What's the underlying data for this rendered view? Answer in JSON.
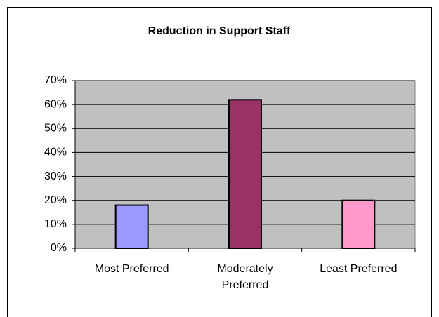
{
  "chart_data": {
    "type": "bar",
    "title": "Reduction in Support Staff",
    "categories": [
      "Most Preferred",
      "Moderately Preferred",
      "Least Preferred"
    ],
    "values": [
      18,
      62,
      20
    ],
    "colors": [
      "#9999ff",
      "#993366",
      "#ff99cc"
    ],
    "ylim": [
      0,
      70
    ],
    "yticks": [
      {
        "value": 0,
        "label": "0%"
      },
      {
        "value": 10,
        "label": "10%"
      },
      {
        "value": 20,
        "label": "20%"
      },
      {
        "value": 30,
        "label": "30%"
      },
      {
        "value": 40,
        "label": "40%"
      },
      {
        "value": 50,
        "label": "50%"
      },
      {
        "value": 60,
        "label": "60%"
      },
      {
        "value": 70,
        "label": "70%"
      }
    ],
    "grid": true
  }
}
